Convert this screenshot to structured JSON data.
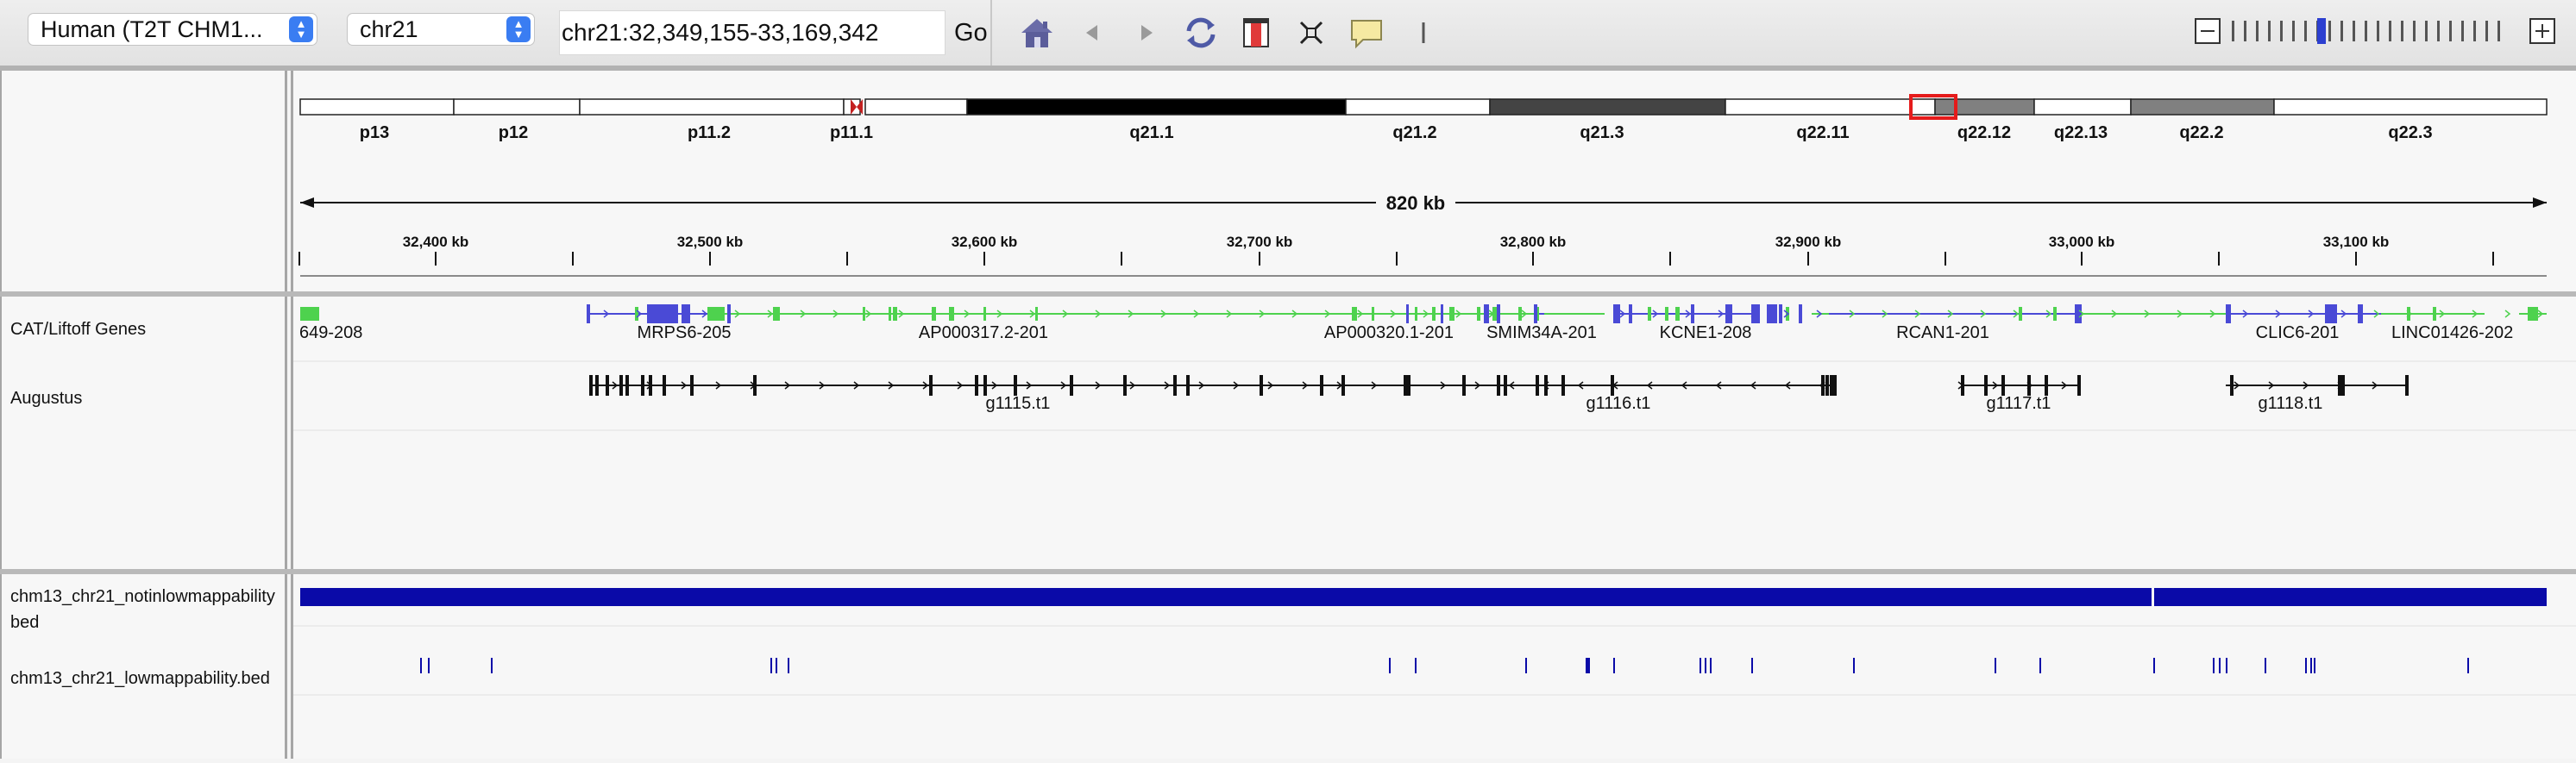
{
  "toolbar": {
    "genome": "Human (T2T CHM1...",
    "chromosome": "chr21",
    "locus": "chr21:32,349,155-33,169,342",
    "go_label": "Go",
    "icons": [
      "home-icon",
      "back-icon",
      "forward-icon",
      "refresh-icon",
      "roi-icon",
      "fit-icon",
      "popup-text-icon",
      "divider"
    ]
  },
  "ideogram": {
    "bands": [
      "p13",
      "p12",
      "p11.2",
      "p11.1",
      "q21.1",
      "q21.2",
      "q21.3",
      "q22.11",
      "q22.12",
      "q22.13",
      "q22.2",
      "q22.3"
    ]
  },
  "ruler": {
    "span_label": "820 kb",
    "ticks": [
      "32,400 kb",
      "32,500 kb",
      "32,600 kb",
      "32,700 kb",
      "32,800 kb",
      "32,900 kb",
      "33,000 kb",
      "33,100 kb"
    ]
  },
  "tracks": {
    "genes_name": "CAT/Liftoff Genes",
    "augustus_name": "Augustus",
    "gene_labels": [
      "649-208",
      "MRPS6-205",
      "AP000317.2-201",
      "AP000320.1-201",
      "SMIM34A-201",
      "KCNE1-208",
      "RCAN1-201",
      "CLIC6-201",
      "LINC01426-202"
    ],
    "augustus_labels": [
      "g1115.t1",
      "g1116.t1",
      "g1117.t1",
      "g1118.t1"
    ],
    "bed1_name_line1": "chm13_chr21_notinlowmappability",
    "bed1_name_line2": "bed",
    "bed2_name": "chm13_chr21_lowmappability.bed"
  },
  "colors": {
    "gene_green": "#4ed24e",
    "gene_blue": "#4a4ad6",
    "feature_black": "#111111",
    "bed_blue": "#0a0aa8",
    "selection_red": "#e51b1b"
  }
}
